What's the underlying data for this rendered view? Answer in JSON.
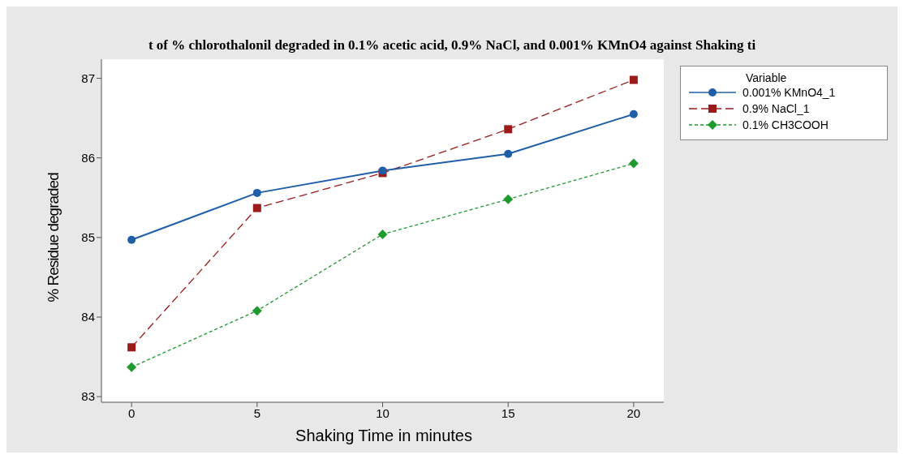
{
  "chart_data": {
    "type": "line",
    "title": "t of %  chlorothalonil degraded in 0.1%  acetic acid, 0.9%  NaCl, and 0.001%  KMnO4  against Shaking ti",
    "xlabel": "Shaking Time in minutes",
    "ylabel": "% Residue degraded",
    "legend_title": "Variable",
    "legend": "top right",
    "grid": false,
    "x": [
      0,
      5,
      10,
      15,
      20
    ],
    "xlim": [
      -1.2,
      21.2
    ],
    "xticks": [
      0,
      5,
      10,
      15,
      20
    ],
    "ylim": [
      82.93,
      87.24
    ],
    "yticks": [
      83,
      84,
      85,
      86,
      87
    ],
    "series": [
      {
        "name": "0.001% KMnO4_1",
        "color": "#1f5fa8",
        "marker": "circle",
        "line_style": "solid",
        "values": [
          84.97,
          85.56,
          85.84,
          86.05,
          86.55
        ]
      },
      {
        "name": "0.9% NaCl_1",
        "color": "#9b1b1b",
        "marker": "square",
        "line_style": "dashed",
        "values": [
          83.62,
          85.37,
          85.81,
          86.36,
          86.98
        ]
      },
      {
        "name": "0.1%  CH3COOH",
        "color": "#1e9a2e",
        "marker": "diamond",
        "line_style": "dotted",
        "values": [
          83.37,
          84.08,
          85.04,
          85.48,
          85.93
        ]
      }
    ]
  }
}
